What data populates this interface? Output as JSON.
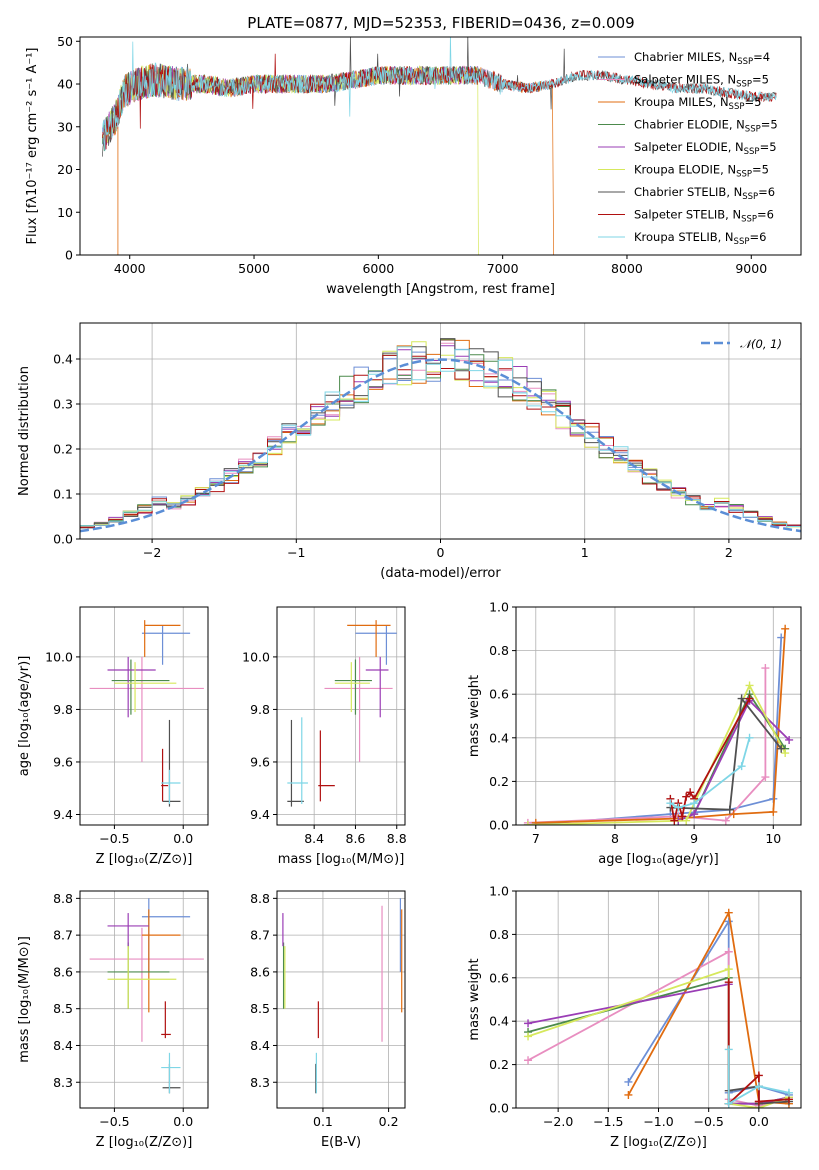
{
  "figure": {
    "title": "PLATE=0877, MJD=52353, FIBERID=0436, z=0.009"
  },
  "colors": [
    "#6d8fd6",
    "#e88ec0",
    "#e06c10",
    "#4c8a4c",
    "#9a3db5",
    "#d6e85c",
    "#505050",
    "#b01010",
    "#7fd6e6"
  ],
  "chart_data": [
    {
      "id": "spectrum",
      "type": "line",
      "title": "PLATE=0877, MJD=52353, FIBERID=0436, z=0.009",
      "xlabel": "wavelength [Angstrom, rest frame]",
      "ylabel": "Flux [fλ10⁻¹⁷ erg cm⁻² s⁻¹ A⁻¹]",
      "xlim": [
        3600,
        9400
      ],
      "ylim": [
        0,
        51
      ],
      "xticks": [
        4000,
        5000,
        6000,
        7000,
        8000,
        9000
      ],
      "yticks": [
        0,
        10,
        20,
        30,
        40,
        50
      ],
      "grid": false,
      "legend_position": "top-right",
      "continuum_x": [
        3780,
        3900,
        3950,
        4050,
        4200,
        4400,
        4600,
        4800,
        5000,
        5200,
        5400,
        5600,
        5800,
        6000,
        6200,
        6400,
        6600,
        6800,
        7000,
        7200,
        7400,
        7600,
        7800,
        8000,
        8200,
        8400,
        8600,
        8800,
        9000,
        9200
      ],
      "continuum_y": [
        27,
        33,
        38,
        40,
        41,
        40,
        40,
        39,
        40,
        40,
        40,
        40,
        41,
        42,
        42,
        42,
        42,
        42,
        40,
        39,
        40,
        42,
        42,
        41,
        40,
        39,
        39,
        38,
        37,
        37
      ],
      "series": [
        {
          "name": "Chabrier MILES, N_SSP=4",
          "color": "#6d8fd6",
          "xmax": 7400
        },
        {
          "name": "Salpeter MILES, N_SSP=5",
          "color": "#e88ec0",
          "xmax": 7400
        },
        {
          "name": "Kroupa MILES, N_SSP=5",
          "color": "#e06c10",
          "xmax": 7400
        },
        {
          "name": "Chabrier ELODIE, N_SSP=5",
          "color": "#4c8a4c",
          "xmax": 6800
        },
        {
          "name": "Salpeter ELODIE, N_SSP=5",
          "color": "#9a3db5",
          "xmax": 6800
        },
        {
          "name": "Kroupa ELODIE, N_SSP=5",
          "color": "#d6e85c",
          "xmax": 6800
        },
        {
          "name": "Chabrier STELIB, N_SSP=6",
          "color": "#505050",
          "xmax": 9200
        },
        {
          "name": "Salpeter STELIB, N_SSP=6",
          "color": "#b01010",
          "xmax": 9200
        },
        {
          "name": "Kroupa STELIB, N_SSP=6",
          "color": "#7fd6e6",
          "xmax": 9200
        }
      ]
    },
    {
      "id": "residuals",
      "type": "line",
      "xlabel": "(data-model)/error",
      "ylabel": "Normed distribution",
      "xlim": [
        -2.5,
        2.5
      ],
      "ylim": [
        0,
        0.48
      ],
      "xticks": [
        -2,
        -1,
        0,
        1,
        2
      ],
      "yticks": [
        0,
        0.1,
        0.2,
        0.3,
        0.4
      ],
      "grid": true,
      "legend_position": "top-right",
      "reference": {
        "name": "𝒩(0, 1)",
        "color": "#5b8ed6"
      },
      "bin_width": 0.1,
      "bin_start": -2.5,
      "series_colors": [
        "#6d8fd6",
        "#e88ec0",
        "#e06c10",
        "#4c8a4c",
        "#9a3db5",
        "#d6e85c",
        "#505050",
        "#b01010",
        "#7fd6e6"
      ]
    },
    {
      "id": "age_vs_Z",
      "type": "scatter",
      "xlabel": "Z [log₁₀(Z/Z⊙)]",
      "ylabel": "age  [log₁₀(age/yr)]",
      "xlim": [
        -0.75,
        0.18
      ],
      "ylim": [
        9.36,
        10.19
      ],
      "xticks": [
        -0.5,
        0.0
      ],
      "yticks": [
        9.4,
        9.6,
        9.8,
        10.0
      ],
      "grid": true,
      "points": [
        {
          "c": "#6d8fd6",
          "x": -0.15,
          "y": 10.09,
          "xe": [
            -0.3,
            0.05
          ],
          "ye": [
            9.97,
            10.12
          ]
        },
        {
          "c": "#e88ec0",
          "x": -0.3,
          "y": 9.88,
          "xe": [
            -0.68,
            0.15
          ],
          "ye": [
            9.6,
            10.0
          ]
        },
        {
          "c": "#e06c10",
          "x": -0.28,
          "y": 10.12,
          "xe": [
            -0.28,
            -0.02
          ],
          "ye": [
            10.0,
            10.14
          ]
        },
        {
          "c": "#4c8a4c",
          "x": -0.38,
          "y": 9.91,
          "xe": [
            -0.52,
            -0.1
          ],
          "ye": [
            9.78,
            9.99
          ]
        },
        {
          "c": "#9a3db5",
          "x": -0.4,
          "y": 9.95,
          "xe": [
            -0.55,
            -0.2
          ],
          "ye": [
            9.77,
            10.0
          ]
        },
        {
          "c": "#d6e85c",
          "x": -0.35,
          "y": 9.9,
          "xe": [
            -0.5,
            -0.05
          ],
          "ye": [
            9.79,
            9.98
          ]
        },
        {
          "c": "#505050",
          "x": -0.1,
          "y": 9.45,
          "xe": [
            -0.15,
            -0.02
          ],
          "ye": [
            9.43,
            9.76
          ]
        },
        {
          "c": "#b01010",
          "x": -0.15,
          "y": 9.51,
          "xe": [
            -0.16,
            -0.11
          ],
          "ye": [
            9.45,
            9.65
          ]
        },
        {
          "c": "#7fd6e6",
          "x": -0.1,
          "y": 9.52,
          "xe": [
            -0.16,
            -0.02
          ],
          "ye": [
            9.44,
            9.57
          ]
        }
      ]
    },
    {
      "id": "age_vs_mass",
      "type": "scatter",
      "xlabel": "mass [log₁₀(M/M⊙)]",
      "ylabel": "",
      "xlim": [
        8.22,
        8.84
      ],
      "ylim": [
        9.36,
        10.19
      ],
      "xticks": [
        8.4,
        8.6,
        8.8
      ],
      "yticks": [
        9.4,
        9.6,
        9.8,
        10.0
      ],
      "grid": true,
      "points": [
        {
          "c": "#6d8fd6",
          "x": 8.75,
          "y": 10.09,
          "xe": [
            8.6,
            8.8
          ],
          "ye": [
            9.97,
            10.12
          ]
        },
        {
          "c": "#e88ec0",
          "x": 8.62,
          "y": 9.88,
          "xe": [
            8.45,
            8.78
          ],
          "ye": [
            9.6,
            10.0
          ]
        },
        {
          "c": "#e06c10",
          "x": 8.7,
          "y": 10.12,
          "xe": [
            8.56,
            8.77
          ],
          "ye": [
            10.0,
            10.14
          ]
        },
        {
          "c": "#4c8a4c",
          "x": 8.6,
          "y": 9.91,
          "xe": [
            8.5,
            8.68
          ],
          "ye": [
            9.78,
            9.99
          ]
        },
        {
          "c": "#9a3db5",
          "x": 8.72,
          "y": 9.95,
          "xe": [
            8.65,
            8.76
          ],
          "ye": [
            9.77,
            10.0
          ]
        },
        {
          "c": "#d6e85c",
          "x": 8.58,
          "y": 9.9,
          "xe": [
            8.5,
            8.67
          ],
          "ye": [
            9.79,
            9.98
          ]
        },
        {
          "c": "#505050",
          "x": 8.29,
          "y": 9.45,
          "xe": [
            8.27,
            8.35
          ],
          "ye": [
            9.43,
            9.76
          ]
        },
        {
          "c": "#b01010",
          "x": 8.43,
          "y": 9.51,
          "xe": [
            8.42,
            8.5
          ],
          "ye": [
            9.45,
            9.72
          ]
        },
        {
          "c": "#7fd6e6",
          "x": 8.34,
          "y": 9.52,
          "xe": [
            8.27,
            8.37
          ],
          "ye": [
            9.44,
            9.77
          ]
        }
      ]
    },
    {
      "id": "mass_weight_vs_age",
      "type": "line",
      "xlabel": "age  [log₁₀(age/yr)]",
      "ylabel": "mass weight",
      "xlim": [
        6.75,
        10.35
      ],
      "ylim": [
        0,
        1.0
      ],
      "xticks": [
        7,
        8,
        9,
        10
      ],
      "yticks": [
        0.0,
        0.2,
        0.4,
        0.6,
        0.8,
        1.0
      ],
      "grid": true,
      "series": [
        {
          "c": "#6d8fd6",
          "x": [
            6.9,
            8.7,
            9.45,
            10.0,
            10.1
          ],
          "y": [
            0.0,
            0.05,
            0.07,
            0.12,
            0.86
          ]
        },
        {
          "c": "#e88ec0",
          "x": [
            6.9,
            8.8,
            9.4,
            9.9,
            9.9
          ],
          "y": [
            0.01,
            0.04,
            0.02,
            0.22,
            0.72
          ]
        },
        {
          "c": "#e06c10",
          "x": [
            7.0,
            8.8,
            9.5,
            10.0,
            10.15
          ],
          "y": [
            0.01,
            0.03,
            0.05,
            0.06,
            0.9
          ]
        },
        {
          "c": "#4c8a4c",
          "x": [
            8.8,
            9.0,
            9.7,
            10.15
          ],
          "y": [
            0.02,
            0.05,
            0.6,
            0.35
          ]
        },
        {
          "c": "#9a3db5",
          "x": [
            8.8,
            9.0,
            9.7,
            10.2
          ],
          "y": [
            0.02,
            0.05,
            0.57,
            0.39
          ]
        },
        {
          "c": "#d6e85c",
          "x": [
            6.9,
            8.9,
            9.7,
            10.15
          ],
          "y": [
            0.0,
            0.02,
            0.64,
            0.33
          ]
        },
        {
          "c": "#505050",
          "x": [
            8.7,
            9.45,
            9.6,
            10.1
          ],
          "y": [
            0.08,
            0.07,
            0.58,
            0.35
          ]
        },
        {
          "c": "#b01010",
          "x": [
            8.7,
            8.75,
            8.8,
            8.85,
            8.9,
            8.95,
            9.0,
            9.7
          ],
          "y": [
            0.12,
            0.02,
            0.1,
            0.04,
            0.13,
            0.15,
            0.12,
            0.58
          ]
        },
        {
          "c": "#7fd6e6",
          "x": [
            8.7,
            8.8,
            9.0,
            9.6,
            9.7
          ],
          "y": [
            0.1,
            0.08,
            0.1,
            0.27,
            0.4
          ]
        }
      ]
    },
    {
      "id": "mass_vs_Z",
      "type": "scatter",
      "xlabel": "Z [log₁₀(Z/Z⊙)]",
      "ylabel": "mass [log₁₀(M/M⊙)]",
      "xlim": [
        -0.75,
        0.18
      ],
      "ylim": [
        8.23,
        8.82
      ],
      "xticks": [
        -0.5,
        0.0
      ],
      "yticks": [
        8.3,
        8.4,
        8.5,
        8.6,
        8.7,
        8.8
      ],
      "grid": true,
      "points": [
        {
          "c": "#6d8fd6",
          "x": -0.25,
          "y": 8.75,
          "xe": [
            -0.3,
            0.05
          ],
          "ye": [
            8.6,
            8.8
          ]
        },
        {
          "c": "#e88ec0",
          "x": -0.3,
          "y": 8.635,
          "xe": [
            -0.68,
            0.15
          ],
          "ye": [
            8.41,
            8.72
          ]
        },
        {
          "c": "#e06c10",
          "x": -0.25,
          "y": 8.7,
          "xe": [
            -0.3,
            -0.02
          ],
          "ye": [
            8.49,
            8.77
          ]
        },
        {
          "c": "#4c8a4c",
          "x": -0.4,
          "y": 8.6,
          "xe": [
            -0.55,
            -0.1
          ],
          "ye": [
            8.5,
            8.68
          ]
        },
        {
          "c": "#9a3db5",
          "x": -0.4,
          "y": 8.725,
          "xe": [
            -0.55,
            -0.25
          ],
          "ye": [
            8.67,
            8.76
          ]
        },
        {
          "c": "#d6e85c",
          "x": -0.4,
          "y": 8.58,
          "xe": [
            -0.55,
            -0.05
          ],
          "ye": [
            8.5,
            8.67
          ]
        },
        {
          "c": "#505050",
          "x": -0.1,
          "y": 8.285,
          "xe": [
            -0.15,
            -0.02
          ],
          "ye": [
            8.27,
            8.35
          ]
        },
        {
          "c": "#b01010",
          "x": -0.13,
          "y": 8.43,
          "xe": [
            -0.16,
            -0.09
          ],
          "ye": [
            8.42,
            8.52
          ]
        },
        {
          "c": "#7fd6e6",
          "x": -0.1,
          "y": 8.34,
          "xe": [
            -0.16,
            -0.02
          ],
          "ye": [
            8.27,
            8.38
          ]
        }
      ]
    },
    {
      "id": "mass_vs_EBV",
      "type": "scatter",
      "xlabel": "E(B-V)",
      "ylabel": "",
      "xlim": [
        0.03,
        0.225
      ],
      "ylim": [
        8.23,
        8.82
      ],
      "xticks": [
        0.1,
        0.2
      ],
      "yticks": [
        8.3,
        8.4,
        8.5,
        8.6,
        8.7,
        8.8
      ],
      "grid": true,
      "points": [
        {
          "c": "#6d8fd6",
          "x": 0.218,
          "ye": [
            8.6,
            8.8
          ]
        },
        {
          "c": "#e88ec0",
          "x": 0.19,
          "ye": [
            8.41,
            8.78
          ]
        },
        {
          "c": "#e06c10",
          "x": 0.22,
          "ye": [
            8.49,
            8.77
          ]
        },
        {
          "c": "#4c8a4c",
          "x": 0.04,
          "ye": [
            8.5,
            8.68
          ]
        },
        {
          "c": "#9a3db5",
          "x": 0.039,
          "ye": [
            8.67,
            8.76
          ]
        },
        {
          "c": "#d6e85c",
          "x": 0.042,
          "ye": [
            8.5,
            8.67
          ]
        },
        {
          "c": "#505050",
          "x": 0.089,
          "ye": [
            8.27,
            8.35
          ]
        },
        {
          "c": "#b01010",
          "x": 0.093,
          "ye": [
            8.42,
            8.52
          ]
        },
        {
          "c": "#7fd6e6",
          "x": 0.09,
          "ye": [
            8.27,
            8.38
          ]
        }
      ]
    },
    {
      "id": "mass_weight_vs_Z",
      "type": "line",
      "xlabel": "Z [log₁₀(Z/Z⊙)]",
      "ylabel": "mass weight",
      "xlim": [
        -2.42,
        0.42
      ],
      "ylim": [
        0,
        1.0
      ],
      "xticks": [
        -2.0,
        -1.5,
        -1.0,
        -0.5,
        0.0
      ],
      "yticks": [
        0.0,
        0.2,
        0.4,
        0.6,
        0.8,
        1.0
      ],
      "grid": true,
      "series": [
        {
          "c": "#6d8fd6",
          "x": [
            -1.3,
            -0.3,
            -0.3,
            0.0,
            0.3
          ],
          "y": [
            0.12,
            0.86,
            0.07,
            0.1,
            0.06
          ]
        },
        {
          "c": "#e88ec0",
          "x": [
            -2.3,
            -0.3,
            -0.3,
            0.0,
            0.3
          ],
          "y": [
            0.22,
            0.72,
            0.04,
            0.01,
            0.05
          ]
        },
        {
          "c": "#e06c10",
          "x": [
            -1.3,
            -0.3,
            0.0,
            0.3
          ],
          "y": [
            0.06,
            0.9,
            0.03,
            0.02
          ]
        },
        {
          "c": "#4c8a4c",
          "x": [
            -2.3,
            -0.3,
            -0.3,
            0.0,
            0.3
          ],
          "y": [
            0.35,
            0.6,
            0.02,
            0.02,
            0.05
          ]
        },
        {
          "c": "#9a3db5",
          "x": [
            -2.3,
            -0.3,
            -0.3,
            0.0,
            0.3
          ],
          "y": [
            0.39,
            0.57,
            0.02,
            0.02,
            0.05
          ]
        },
        {
          "c": "#d6e85c",
          "x": [
            -2.3,
            -0.3,
            -0.3,
            0.0,
            0.3
          ],
          "y": [
            0.33,
            0.64,
            0.02,
            0.0,
            0.05
          ]
        },
        {
          "c": "#505050",
          "x": [
            -0.3,
            0.0,
            0.0,
            0.3
          ],
          "y": [
            0.08,
            0.1,
            0.02,
            0.03
          ]
        },
        {
          "c": "#b01010",
          "x": [
            -0.3,
            -0.3,
            0.0,
            0.0,
            0.3
          ],
          "y": [
            0.58,
            0.02,
            0.15,
            0.03,
            0.04
          ]
        },
        {
          "c": "#7fd6e6",
          "x": [
            -0.3,
            -0.3,
            0.0,
            0.3
          ],
          "y": [
            0.27,
            0.02,
            0.1,
            0.07
          ]
        }
      ]
    }
  ]
}
